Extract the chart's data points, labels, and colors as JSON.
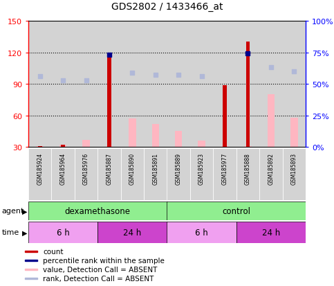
{
  "title": "GDS2802 / 1433466_at",
  "samples": [
    "GSM185924",
    "GSM185964",
    "GSM185976",
    "GSM185887",
    "GSM185890",
    "GSM185891",
    "GSM185889",
    "GSM185923",
    "GSM185977",
    "GSM185888",
    "GSM185892",
    "GSM185893"
  ],
  "count_values": [
    31,
    32,
    null,
    115,
    null,
    null,
    null,
    null,
    89,
    130,
    null,
    null
  ],
  "value_absent": [
    31,
    32,
    37,
    31,
    57,
    52,
    45,
    36,
    31,
    31,
    80,
    58
  ],
  "rank_absent": [
    56,
    53,
    53,
    null,
    59,
    57,
    57,
    56,
    null,
    null,
    63,
    60
  ],
  "percentile_rank_vals": [
    null,
    null,
    null,
    73,
    null,
    null,
    null,
    null,
    null,
    74,
    null,
    null
  ],
  "ylim_left": [
    30,
    150
  ],
  "ylim_right": [
    0,
    100
  ],
  "left_ticks": [
    30,
    60,
    90,
    120,
    150
  ],
  "right_ticks": [
    0,
    25,
    50,
    75,
    100
  ],
  "left_tick_labels": [
    "30",
    "60",
    "90",
    "120",
    "150"
  ],
  "right_tick_labels": [
    "0%",
    "25%",
    "50%",
    "75%",
    "100%"
  ],
  "agent_groups": [
    {
      "label": "dexamethasone",
      "start": 0,
      "end": 5
    },
    {
      "label": "control",
      "start": 6,
      "end": 11
    }
  ],
  "time_groups": [
    {
      "label": "6 h",
      "start": 0,
      "end": 2,
      "light": true
    },
    {
      "label": "24 h",
      "start": 3,
      "end": 5,
      "light": false
    },
    {
      "label": "6 h",
      "start": 6,
      "end": 8,
      "light": true
    },
    {
      "label": "24 h",
      "start": 9,
      "end": 11,
      "light": false
    }
  ],
  "count_color": "#cc0000",
  "percentile_color": "#00008b",
  "value_absent_color": "#ffb6c1",
  "rank_absent_color": "#b0b8d8",
  "agent_color": "#90ee90",
  "time_color_light": "#f0a0f0",
  "time_color_dark": "#cc44cc",
  "bar_width": 0.35,
  "legend_items": [
    {
      "label": "count",
      "color": "#cc0000"
    },
    {
      "label": "percentile rank within the sample",
      "color": "#00008b"
    },
    {
      "label": "value, Detection Call = ABSENT",
      "color": "#ffb6c1"
    },
    {
      "label": "rank, Detection Call = ABSENT",
      "color": "#b0b8d8"
    }
  ]
}
